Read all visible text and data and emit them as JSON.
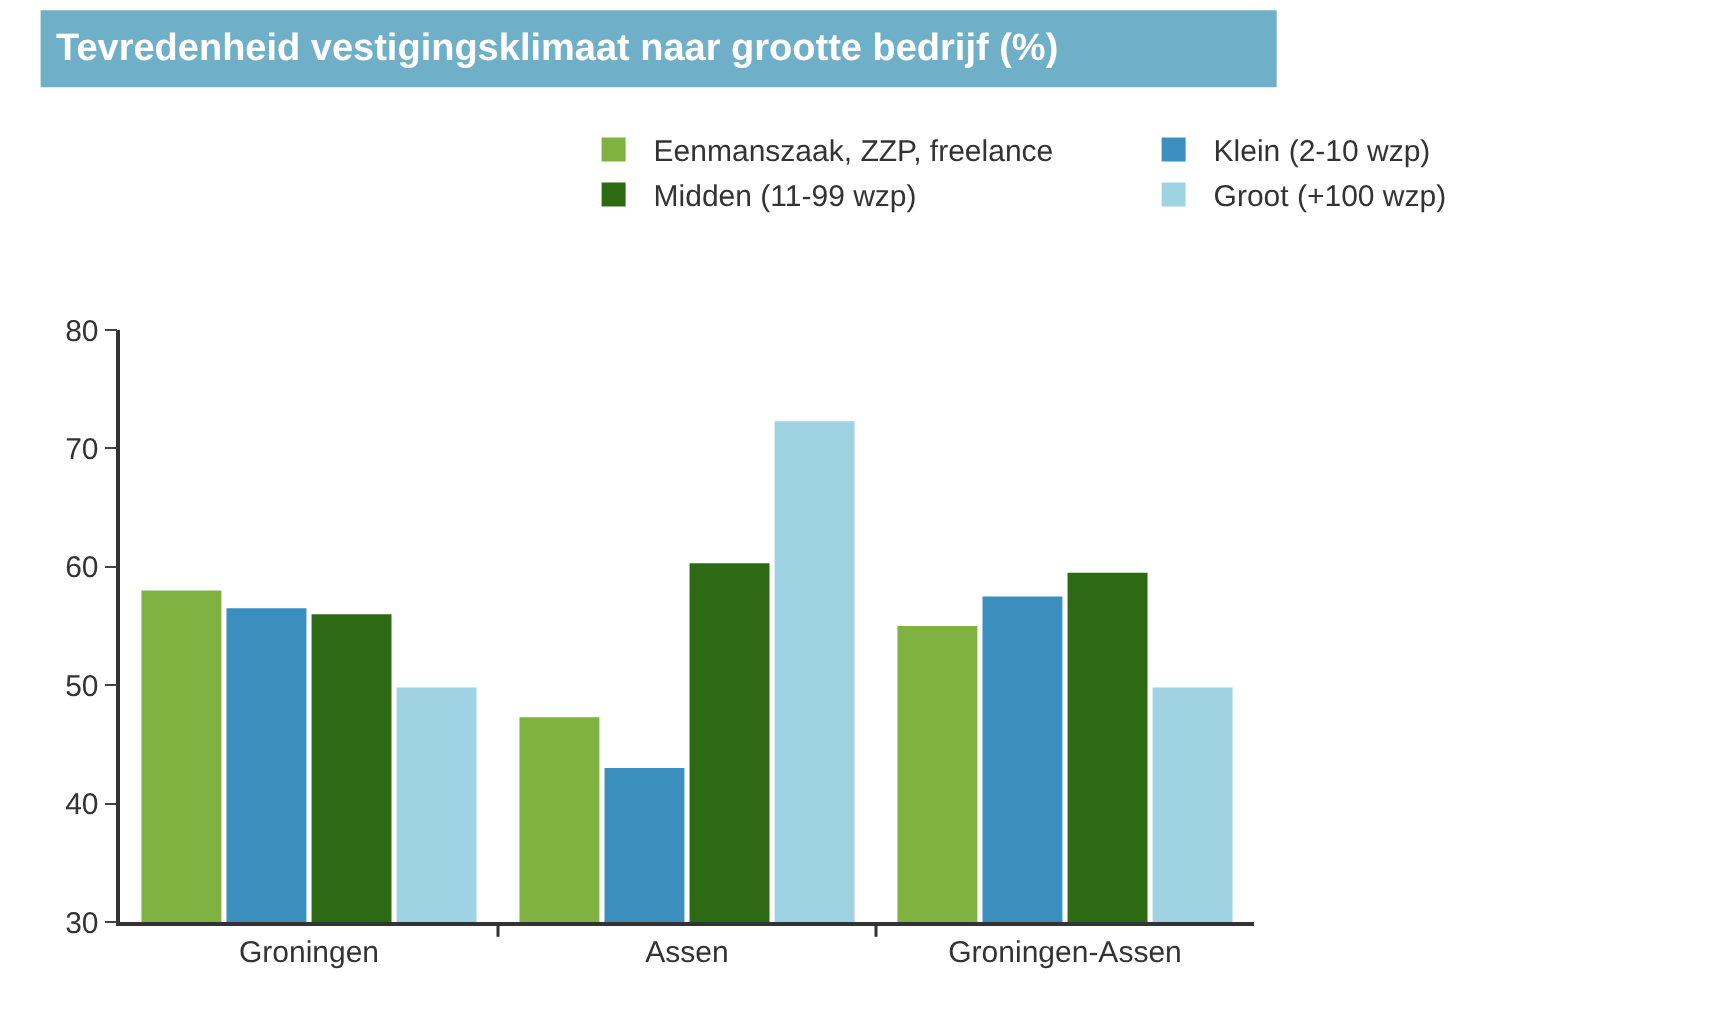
{
  "chart_data": {
    "type": "bar",
    "title": "Tevredenheid vestigingsklimaat naar grootte bedrijf (%)",
    "categories": [
      "Groningen",
      "Assen",
      "Groningen-Assen"
    ],
    "series": [
      {
        "name": "Eenmanszaak, ZZP, freelance",
        "color": "#7fb241",
        "values": [
          58,
          47.3,
          55
        ]
      },
      {
        "name": "Klein (2-10 wzp)",
        "color": "#3a8fbf",
        "values": [
          56.5,
          43,
          57.5
        ]
      },
      {
        "name": "Midden (11-99 wzp)",
        "color": "#2e6a14",
        "values": [
          56,
          60.3,
          59.5
        ]
      },
      {
        "name": "Groot (+100 wzp)",
        "color": "#9fd3e3",
        "values": [
          49.8,
          72.3,
          49.8
        ]
      }
    ],
    "ylim": [
      30,
      80
    ],
    "yticks": [
      30,
      40,
      50,
      60,
      70,
      80
    ],
    "grid": false,
    "legend": "top right"
  }
}
